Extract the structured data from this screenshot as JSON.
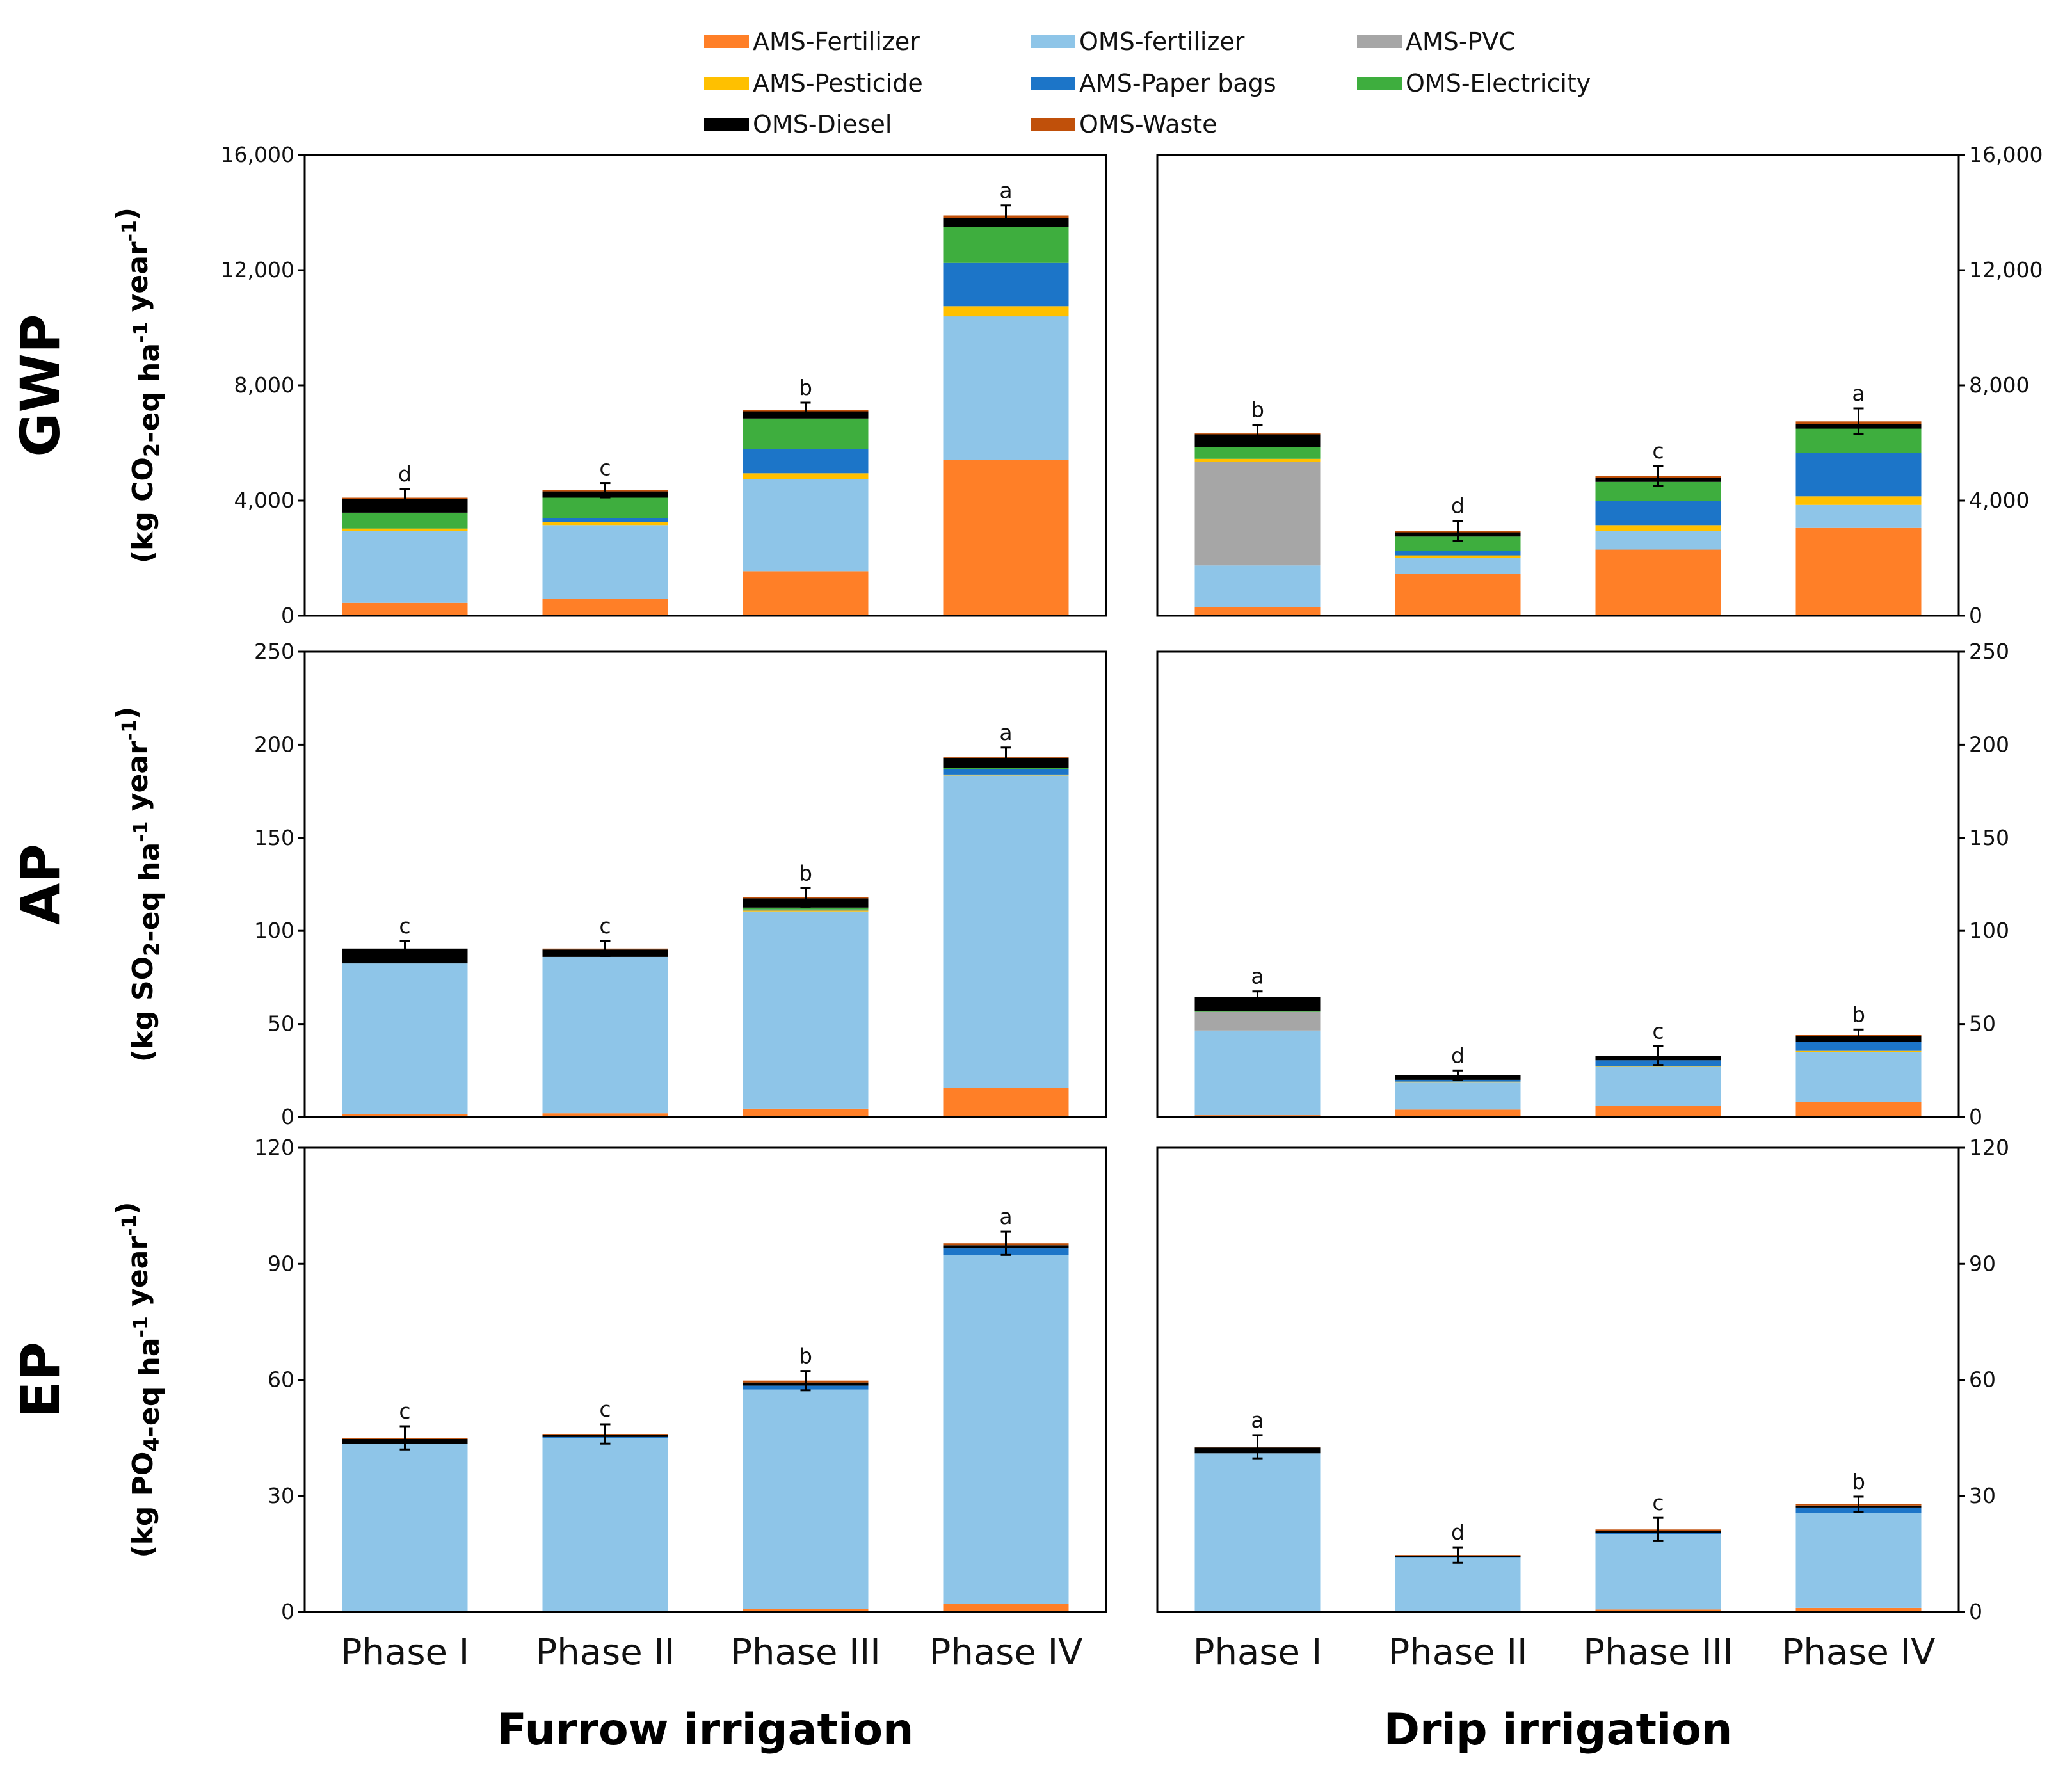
{
  "chart_data": {
    "type": "bar",
    "stacked": true,
    "legend": {
      "placement": "top",
      "entries": [
        {
          "key": "AMS-Fertilizer",
          "label": "AMS-Fertilizer",
          "color": "#FF7F27"
        },
        {
          "key": "OMS-fertilizer",
          "label": "OMS-fertilizer",
          "color": "#8EC5E8"
        },
        {
          "key": "AMS-PVC",
          "label": "AMS-PVC",
          "color": "#A6A6A6"
        },
        {
          "key": "AMS-Pesticide",
          "label": "AMS-Pesticide",
          "color": "#FFC000"
        },
        {
          "key": "AMS-Paper bags",
          "label": "AMS-Paper bags",
          "color": "#1C75C8"
        },
        {
          "key": "OMS-Electricity",
          "label": "OMS-Electricity",
          "color": "#3EAE3E"
        },
        {
          "key": "OMS-Diesel",
          "label": "OMS-Diesel",
          "color": "#000000"
        },
        {
          "key": "OMS-Waste",
          "label": "OMS-Waste",
          "color": "#C0500A"
        }
      ]
    },
    "stack_order": [
      "AMS-Fertilizer",
      "OMS-fertilizer",
      "AMS-PVC",
      "AMS-Pesticide",
      "AMS-Paper bags",
      "OMS-Electricity",
      "OMS-Diesel",
      "OMS-Waste"
    ],
    "categories": [
      "Phase I",
      "Phase II",
      "Phase III",
      "Phase IV"
    ],
    "column_titles": [
      "Furrow irrigation",
      "Drip irrigation"
    ],
    "rows": [
      {
        "name": "GWP",
        "ylabel": {
          "pre": "(kg CO",
          "sub": "2",
          "mid": "-eq ha",
          "sup1": "-1",
          "mid2": " year",
          "sup2": "-1",
          "post": ")"
        },
        "ylim": [
          0,
          16000
        ],
        "yticks": [
          0,
          4000,
          8000,
          12000,
          16000
        ],
        "ytick_labels": [
          "0",
          "4,000",
          "8,000",
          "12,000",
          "16,000"
        ],
        "panels": [
          {
            "irrigation": "Furrow irrigation",
            "letters": [
              "d",
              "c",
              "b",
              "a"
            ],
            "errors": [
              300,
              250,
              250,
              350
            ],
            "series": [
              {
                "name": "AMS-Fertilizer",
                "values": [
                  450,
                  600,
                  1550,
                  5400
                ]
              },
              {
                "name": "OMS-fertilizer",
                "values": [
                  2500,
                  2550,
                  3200,
                  5000
                ]
              },
              {
                "name": "AMS-PVC",
                "values": [
                  0,
                  0,
                  0,
                  0
                ]
              },
              {
                "name": "AMS-Pesticide",
                "values": [
                  80,
                  100,
                  200,
                  350
                ]
              },
              {
                "name": "AMS-Paper bags",
                "values": [
                  0,
                  150,
                  850,
                  1500
                ]
              },
              {
                "name": "OMS-Electricity",
                "values": [
                  550,
                  700,
                  1050,
                  1250
                ]
              },
              {
                "name": "OMS-Diesel",
                "values": [
                  480,
                  220,
                  250,
                  300
                ]
              },
              {
                "name": "OMS-Waste",
                "values": [
                  40,
                  40,
                  50,
                  100
                ]
              }
            ]
          },
          {
            "irrigation": "Drip irrigation",
            "letters": [
              "b",
              "d",
              "c",
              "a"
            ],
            "errors": [
              300,
              350,
              350,
              450
            ],
            "series": [
              {
                "name": "AMS-Fertilizer",
                "values": [
                  300,
                  1450,
                  2300,
                  3050
                ]
              },
              {
                "name": "OMS-fertilizer",
                "values": [
                  1450,
                  550,
                  650,
                  800
                ]
              },
              {
                "name": "AMS-PVC",
                "values": [
                  3600,
                  0,
                  0,
                  0
                ]
              },
              {
                "name": "AMS-Pesticide",
                "values": [
                  100,
                  100,
                  200,
                  300
                ]
              },
              {
                "name": "AMS-Paper bags",
                "values": [
                  0,
                  150,
                  850,
                  1500
                ]
              },
              {
                "name": "OMS-Electricity",
                "values": [
                  400,
                  500,
                  650,
                  850
                ]
              },
              {
                "name": "OMS-Diesel",
                "values": [
                  450,
                  150,
                  150,
                  150
                ]
              },
              {
                "name": "OMS-Waste",
                "values": [
                  30,
                  50,
                  50,
                  100
                ]
              }
            ]
          }
        ]
      },
      {
        "name": "AP",
        "ylabel": {
          "pre": "(kg SO",
          "sub": "2",
          "mid": "-eq ha",
          "sup1": "-1",
          "mid2": " year",
          "sup2": "-1",
          "post": ")"
        },
        "ylim": [
          0,
          250
        ],
        "yticks": [
          0,
          50,
          100,
          150,
          200,
          250
        ],
        "ytick_labels": [
          "0",
          "50",
          "100",
          "150",
          "200",
          "250"
        ],
        "panels": [
          {
            "irrigation": "Furrow irrigation",
            "letters": [
              "c",
              "c",
              "b",
              "a"
            ],
            "errors": [
              4,
              4,
              5,
              5
            ],
            "series": [
              {
                "name": "AMS-Fertilizer",
                "values": [
                  1.5,
                  2,
                  4.5,
                  15.5
                ]
              },
              {
                "name": "OMS-fertilizer",
                "values": [
                  81,
                  84,
                  106,
                  168
                ]
              },
              {
                "name": "AMS-PVC",
                "values": [
                  0,
                  0,
                  0,
                  0
                ]
              },
              {
                "name": "AMS-Pesticide",
                "values": [
                  0,
                  0,
                  0.5,
                  0.5
                ]
              },
              {
                "name": "AMS-Paper bags",
                "values": [
                  0,
                  0,
                  0.5,
                  3
                ]
              },
              {
                "name": "OMS-Electricity",
                "values": [
                  0,
                  0,
                  1,
                  0.5
                ]
              },
              {
                "name": "OMS-Diesel",
                "values": [
                  8,
                  4,
                  5,
                  5.5
                ]
              },
              {
                "name": "OMS-Waste",
                "values": [
                  0,
                  0.5,
                  0.5,
                  0.5
                ]
              }
            ]
          },
          {
            "irrigation": "Drip irrigation",
            "letters": [
              "a",
              "d",
              "c",
              "b"
            ],
            "errors": [
              3,
              2.5,
              5,
              3
            ],
            "series": [
              {
                "name": "AMS-Fertilizer",
                "values": [
                  1,
                  4,
                  6,
                  8
                ]
              },
              {
                "name": "OMS-fertilizer",
                "values": [
                  45.5,
                  14.5,
                  21,
                  27
                ]
              },
              {
                "name": "AMS-PVC",
                "values": [
                  10,
                  0,
                  0,
                  0
                ]
              },
              {
                "name": "AMS-Pesticide",
                "values": [
                  0,
                  0.5,
                  0.5,
                  0.5
                ]
              },
              {
                "name": "AMS-Paper bags",
                "values": [
                  0,
                  1,
                  3,
                  5
                ]
              },
              {
                "name": "OMS-Electricity",
                "values": [
                  0.5,
                  0,
                  0,
                  0
                ]
              },
              {
                "name": "OMS-Diesel",
                "values": [
                  7.5,
                  2.5,
                  2.5,
                  3
                ]
              },
              {
                "name": "OMS-Waste",
                "values": [
                  0,
                  0,
                  0,
                  0.5
                ]
              }
            ]
          }
        ]
      },
      {
        "name": "EP",
        "ylabel": {
          "pre": "(kg PO",
          "sub": "4",
          "mid": "-eq ha",
          "sup1": "-1",
          "mid2": " year",
          "sup2": "-1",
          "post": ")"
        },
        "ylim": [
          0,
          120
        ],
        "yticks": [
          0,
          30,
          60,
          90,
          120
        ],
        "ytick_labels": [
          "0",
          "30",
          "60",
          "90",
          "120"
        ],
        "panels": [
          {
            "irrigation": "Furrow irrigation",
            "letters": [
              "c",
              "c",
              "b",
              "a"
            ],
            "errors": [
              3,
              2.5,
              2.5,
              3
            ],
            "series": [
              {
                "name": "AMS-Fertilizer",
                "values": [
                  0.3,
                  0.3,
                  0.7,
                  2
                ]
              },
              {
                "name": "OMS-fertilizer",
                "values": [
                  43.2,
                  44.7,
                  56.8,
                  90.2
                ]
              },
              {
                "name": "AMS-PVC",
                "values": [
                  0,
                  0,
                  0,
                  0
                ]
              },
              {
                "name": "AMS-Pesticide",
                "values": [
                  0,
                  0,
                  0,
                  0
                ]
              },
              {
                "name": "AMS-Paper bags",
                "values": [
                  0,
                  0.2,
                  1,
                  1.8
                ]
              },
              {
                "name": "OMS-Electricity",
                "values": [
                  0,
                  0,
                  0,
                  0
                ]
              },
              {
                "name": "OMS-Diesel",
                "values": [
                  1.2,
                  0.5,
                  0.8,
                  0.8
                ]
              },
              {
                "name": "OMS-Waste",
                "values": [
                  0.3,
                  0.3,
                  0.5,
                  0.5
                ]
              }
            ]
          },
          {
            "irrigation": "Drip irrigation",
            "letters": [
              "a",
              "d",
              "c",
              "b"
            ],
            "errors": [
              3,
              2,
              3,
              2
            ],
            "series": [
              {
                "name": "AMS-Fertilizer",
                "values": [
                  0.2,
                  0.3,
                  0.6,
                  1
                ]
              },
              {
                "name": "OMS-fertilizer",
                "values": [
                  40.8,
                  13.7,
                  19.4,
                  24.6
                ]
              },
              {
                "name": "AMS-PVC",
                "values": [
                  0,
                  0,
                  0,
                  0
                ]
              },
              {
                "name": "AMS-Pesticide",
                "values": [
                  0,
                  0,
                  0,
                  0
                ]
              },
              {
                "name": "AMS-Paper bags",
                "values": [
                  0,
                  0.2,
                  0.5,
                  1.4
                ]
              },
              {
                "name": "OMS-Electricity",
                "values": [
                  0,
                  0,
                  0,
                  0
                ]
              },
              {
                "name": "OMS-Diesel",
                "values": [
                  1.5,
                  0.3,
                  0.5,
                  0.5
                ]
              },
              {
                "name": "OMS-Waste",
                "values": [
                  0.2,
                  0.2,
                  0.3,
                  0.3
                ]
              }
            ]
          }
        ]
      }
    ]
  }
}
